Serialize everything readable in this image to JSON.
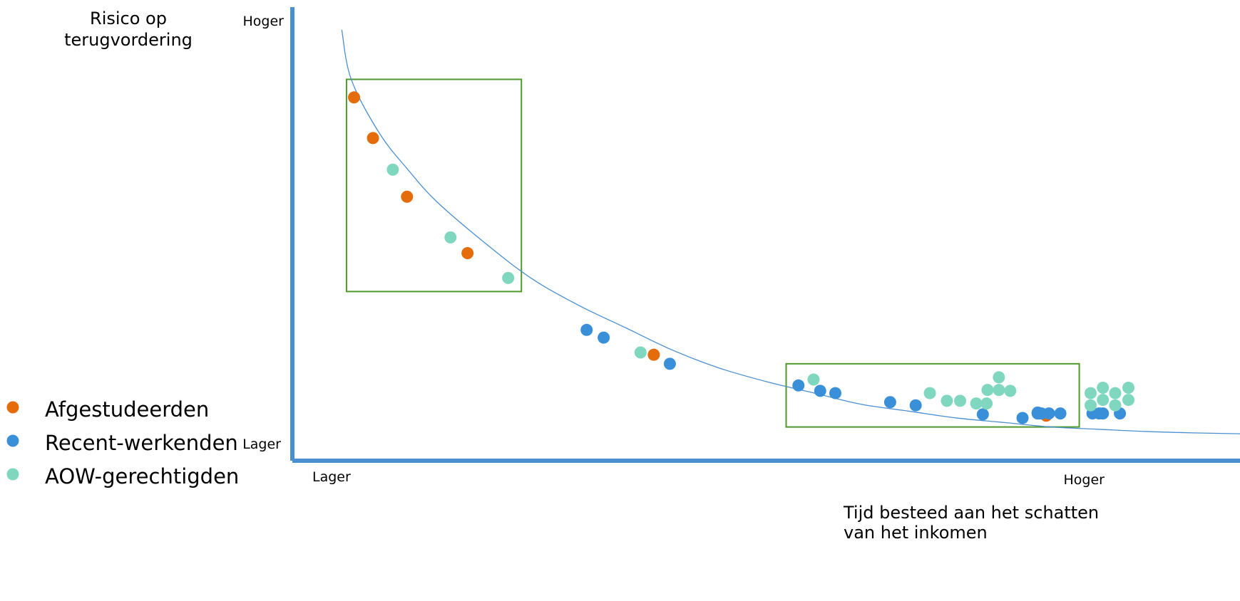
{
  "chart_data": {
    "type": "scatter",
    "ylabel": "Risico op\nterugvordering",
    "xlabel": "Tijd besteed aan het schatten\nvan het inkomen",
    "y_high_label": "Hoger",
    "y_low_label": "Lager",
    "x_low_label": "Lager",
    "x_high_label": "Hoger",
    "legend_position": "bottom-left",
    "xlim": [
      0,
      1
    ],
    "ylim": [
      0,
      1
    ],
    "grid": false,
    "colors": {
      "axis": "#4a8fd0",
      "curve": "#4a8fd0",
      "box": "#4e9a2b"
    },
    "curve": [
      [
        0.05,
        0.95
      ],
      [
        0.06,
        0.84
      ],
      [
        0.09,
        0.72
      ],
      [
        0.12,
        0.64
      ],
      [
        0.15,
        0.57
      ],
      [
        0.2,
        0.48
      ],
      [
        0.25,
        0.4
      ],
      [
        0.3,
        0.34
      ],
      [
        0.35,
        0.29
      ],
      [
        0.4,
        0.24
      ],
      [
        0.45,
        0.2
      ],
      [
        0.5,
        0.17
      ],
      [
        0.55,
        0.145
      ],
      [
        0.6,
        0.12
      ],
      [
        0.65,
        0.105
      ],
      [
        0.7,
        0.09
      ],
      [
        0.75,
        0.08
      ],
      [
        0.8,
        0.07
      ],
      [
        0.85,
        0.065
      ],
      [
        0.9,
        0.06
      ],
      [
        0.95,
        0.057
      ],
      [
        1.0,
        0.055
      ]
    ],
    "boxes": [
      {
        "x0": 0.055,
        "x1": 0.24,
        "y0": 0.37,
        "y1": 0.84
      },
      {
        "x0": 0.52,
        "x1": 0.83,
        "y0": 0.07,
        "y1": 0.21
      }
    ],
    "series": [
      {
        "name": "Afgestudeerden",
        "color": "#e46c0a",
        "points": [
          [
            0.063,
            0.8
          ],
          [
            0.083,
            0.71
          ],
          [
            0.119,
            0.58
          ],
          [
            0.183,
            0.455
          ],
          [
            0.38,
            0.23
          ],
          [
            0.795,
            0.095
          ]
        ]
      },
      {
        "name": "Recent-werkenden",
        "color": "#3a8fd9",
        "points": [
          [
            0.309,
            0.285
          ],
          [
            0.327,
            0.268
          ],
          [
            0.397,
            0.21
          ],
          [
            0.533,
            0.162
          ],
          [
            0.556,
            0.15
          ],
          [
            0.572,
            0.145
          ],
          [
            0.63,
            0.125
          ],
          [
            0.657,
            0.118
          ],
          [
            0.728,
            0.098
          ],
          [
            0.77,
            0.09
          ],
          [
            0.786,
            0.1
          ],
          [
            0.79,
            0.1
          ],
          [
            0.786,
            0.102
          ],
          [
            0.798,
            0.1
          ],
          [
            0.81,
            0.1
          ],
          [
            0.787,
            0.1
          ],
          [
            0.786,
            0.101
          ],
          [
            0.851,
            0.1
          ],
          [
            0.873,
            0.1
          ],
          [
            0.855,
            0.1
          ],
          [
            0.844,
            0.1
          ]
        ]
      },
      {
        "name": "AOW-gerechtigden",
        "color": "#7fd7bf",
        "points": [
          [
            0.104,
            0.64
          ],
          [
            0.165,
            0.49
          ],
          [
            0.226,
            0.4
          ],
          [
            0.366,
            0.235
          ],
          [
            0.549,
            0.175
          ],
          [
            0.672,
            0.145
          ],
          [
            0.69,
            0.128
          ],
          [
            0.704,
            0.128
          ],
          [
            0.721,
            0.122
          ],
          [
            0.732,
            0.122
          ],
          [
            0.733,
            0.152
          ],
          [
            0.745,
            0.152
          ],
          [
            0.757,
            0.15
          ],
          [
            0.745,
            0.18
          ],
          [
            0.842,
            0.145
          ],
          [
            0.855,
            0.157
          ],
          [
            0.868,
            0.145
          ],
          [
            0.882,
            0.157
          ],
          [
            0.842,
            0.118
          ],
          [
            0.855,
            0.13
          ],
          [
            0.868,
            0.118
          ],
          [
            0.882,
            0.13
          ]
        ]
      }
    ]
  }
}
